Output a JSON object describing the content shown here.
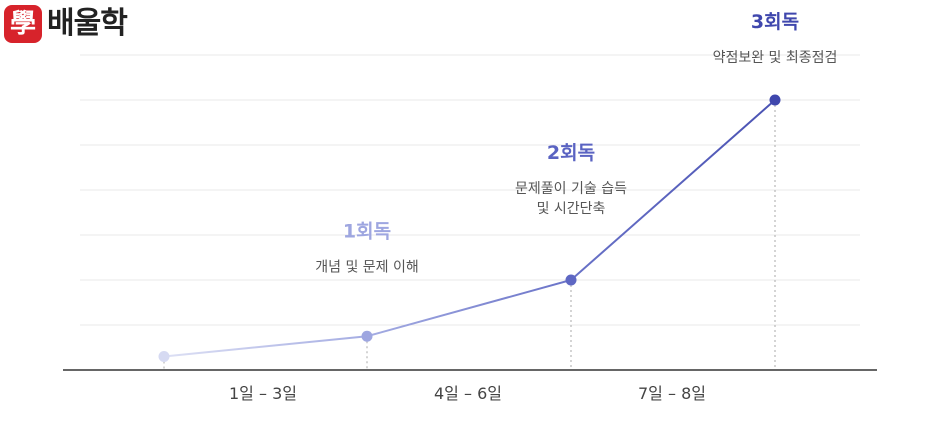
{
  "brand": {
    "logo_glyph": "學",
    "logo_text": "배울학",
    "accent": "#d7232b"
  },
  "chart_data": {
    "type": "line",
    "categories": [
      "1일 – 3일",
      "4일 – 6일",
      "7일 – 8일"
    ],
    "series": [
      {
        "points": [
          {
            "y": 0.3,
            "color": "#d6daf2"
          },
          {
            "y": 0.75,
            "color": "#9ea6e0"
          },
          {
            "y": 2.0,
            "color": "#5e67c3"
          },
          {
            "y": 6.0,
            "color": "#3f47ad"
          }
        ]
      }
    ],
    "ylim": [
      0,
      6
    ],
    "grid": true,
    "annotations": [
      {
        "point": 1,
        "title": "1회독",
        "lines": [
          "개념 및 문제 이해"
        ],
        "color": "#9ea6e0"
      },
      {
        "point": 2,
        "title": "2회독",
        "lines": [
          "문제풀이 기술 습득",
          "및 시간단축"
        ],
        "color": "#5a63c2"
      },
      {
        "point": 3,
        "title": "3회독",
        "lines": [
          "약점보완 및 최종점검"
        ],
        "color": "#3f47ad"
      }
    ]
  }
}
